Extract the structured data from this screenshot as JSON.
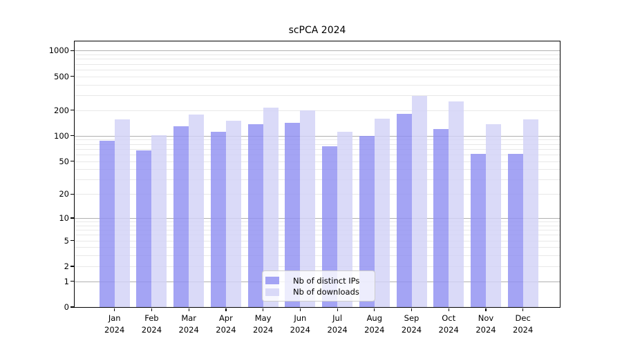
{
  "title": "scPCA 2024",
  "chart_data": {
    "type": "bar",
    "title": "scPCA 2024",
    "scale": "log10(value+1)",
    "categories": [
      "Jan",
      "Feb",
      "Mar",
      "Apr",
      "May",
      "Jun",
      "Jul",
      "Aug",
      "Sep",
      "Oct",
      "Nov",
      "Dec"
    ],
    "year_label": "2024",
    "series": [
      {
        "name": "Nb of distinct IPs",
        "color": "rgba(144,144,241,0.82)",
        "values": [
          88,
          67,
          129,
          112,
          138,
          143,
          75,
          99,
          182,
          121,
          61,
          61
        ]
      },
      {
        "name": "Nb of downloads",
        "color": "rgba(210,210,246,0.82)",
        "values": [
          157,
          101,
          178,
          150,
          216,
          198,
          111,
          160,
          297,
          252,
          138,
          155
        ]
      }
    ],
    "xlabel": "",
    "ylabel": "",
    "ylim": [
      0,
      1280
    ],
    "y_ticks": [
      0,
      1,
      2,
      5,
      10,
      20,
      50,
      100,
      200,
      500,
      1000
    ],
    "grid_major_values": [
      1,
      10,
      100,
      1000
    ],
    "grid_minor_values": [
      2,
      3,
      4,
      5,
      6,
      7,
      8,
      9,
      20,
      30,
      40,
      50,
      60,
      70,
      80,
      90,
      200,
      300,
      400,
      500,
      600,
      700,
      800,
      900
    ],
    "grid_major_color": "#b0b0b0",
    "grid_minor_color": "#e8e8e8",
    "legend_position": "bottom-center",
    "grid": "on"
  }
}
